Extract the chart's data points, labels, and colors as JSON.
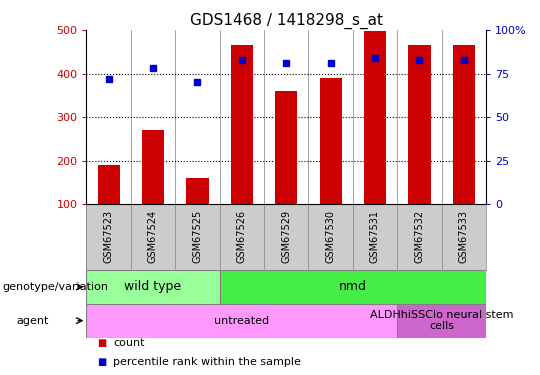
{
  "title": "GDS1468 / 1418298_s_at",
  "samples": [
    "GSM67523",
    "GSM67524",
    "GSM67525",
    "GSM67526",
    "GSM67529",
    "GSM67530",
    "GSM67531",
    "GSM67532",
    "GSM67533"
  ],
  "count_values": [
    190,
    270,
    160,
    465,
    360,
    390,
    498,
    465,
    465
  ],
  "percentile_values": [
    72,
    78,
    70,
    83,
    81,
    81,
    84,
    83,
    83
  ],
  "ylim_left": [
    100,
    500
  ],
  "ylim_right": [
    0,
    100
  ],
  "yticks_left": [
    100,
    200,
    300,
    400,
    500
  ],
  "ytick_labels_left": [
    "100",
    "200",
    "300",
    "400",
    "500"
  ],
  "yticks_right": [
    0,
    25,
    50,
    75,
    100
  ],
  "ytick_labels_right": [
    "0",
    "25",
    "50",
    "75",
    "100%"
  ],
  "bar_color": "#cc0000",
  "dot_color": "#0000cc",
  "bar_width": 0.5,
  "bg_color": "#ffffff",
  "plot_bg_color": "#ffffff",
  "xband_color": "#cccccc",
  "genotype_groups": [
    {
      "name": "wild type",
      "start": 0,
      "end": 3,
      "color": "#99ff99"
    },
    {
      "name": "nmd",
      "start": 3,
      "end": 9,
      "color": "#44ee44"
    }
  ],
  "agent_groups": [
    {
      "name": "untreated",
      "start": 0,
      "end": 7,
      "color": "#ff99ff"
    },
    {
      "name": "ALDHhiSSClo neural stem\ncells",
      "start": 7,
      "end": 9,
      "color": "#cc66cc"
    }
  ],
  "genotype_label": "genotype/variation",
  "agent_label": "agent",
  "legend_items": [
    {
      "label": "count",
      "color": "#cc0000"
    },
    {
      "label": "percentile rank within the sample",
      "color": "#0000cc"
    }
  ]
}
